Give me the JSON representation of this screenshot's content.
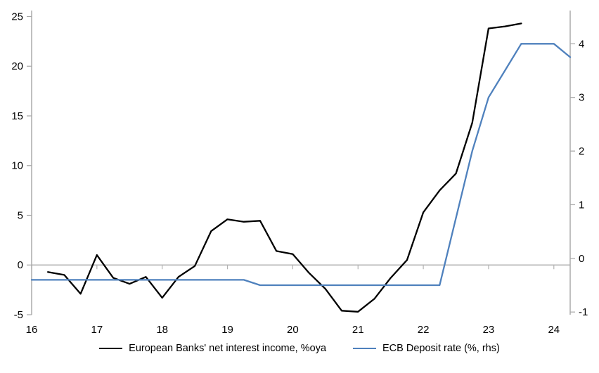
{
  "chart_data": {
    "type": "line",
    "title": "",
    "x_axis": {
      "min": 16,
      "max": 24.25,
      "tick_values": [
        16,
        17,
        18,
        19,
        20,
        21,
        22,
        23,
        24
      ],
      "tick_labels": [
        "16",
        "17",
        "18",
        "19",
        "20",
        "21",
        "22",
        "23",
        "24"
      ],
      "crosses_at_left_value": 0
    },
    "left_axis": {
      "min": -5,
      "max": 25.6,
      "tick_values": [
        25,
        20,
        15,
        10,
        5,
        0,
        -5
      ],
      "tick_labels": [
        "25",
        "20",
        "15",
        "10",
        "5",
        "0",
        "-5"
      ]
    },
    "right_axis": {
      "min": -1.05,
      "max": 4.62,
      "tick_values": [
        4,
        3,
        2,
        1,
        0,
        -1
      ],
      "tick_labels": [
        "4",
        "3",
        "2",
        "1",
        "0",
        "-1"
      ]
    },
    "grid": "zero-line-only",
    "legend_position": "bottom-center",
    "series": [
      {
        "name": "European Banks' net interest income, %oya",
        "axis": "left",
        "color": "#000000",
        "x": [
          16.25,
          16.5,
          16.75,
          17.0,
          17.25,
          17.5,
          17.75,
          18.0,
          18.25,
          18.5,
          18.75,
          19.0,
          19.25,
          19.5,
          19.75,
          20.0,
          20.25,
          20.5,
          20.75,
          21.0,
          21.25,
          21.5,
          21.75,
          22.0,
          22.25,
          22.5,
          22.75,
          23.0,
          23.25,
          23.5
        ],
        "values": [
          -0.7,
          -1.0,
          -2.9,
          1.0,
          -1.3,
          -1.9,
          -1.2,
          -3.3,
          -1.2,
          -0.1,
          3.4,
          4.6,
          4.35,
          4.45,
          1.4,
          1.1,
          -0.8,
          -2.4,
          -4.6,
          -4.7,
          -3.4,
          -1.3,
          0.5,
          5.3,
          7.5,
          9.2,
          14.3,
          23.8,
          24.0,
          24.3
        ]
      },
      {
        "name": "ECB Deposit rate (%, rhs)",
        "axis": "right",
        "color": "#4f81bd",
        "x": [
          16.0,
          16.25,
          16.5,
          16.75,
          17.0,
          17.25,
          17.5,
          17.75,
          18.0,
          18.25,
          18.5,
          18.75,
          19.0,
          19.25,
          19.5,
          19.75,
          20.0,
          20.25,
          20.5,
          20.75,
          21.0,
          21.25,
          21.5,
          21.75,
          22.0,
          22.25,
          22.5,
          22.75,
          23.0,
          23.25,
          23.5,
          23.75,
          24.0,
          24.25
        ],
        "values": [
          -0.4,
          -0.4,
          -0.4,
          -0.4,
          -0.4,
          -0.4,
          -0.4,
          -0.4,
          -0.4,
          -0.4,
          -0.4,
          -0.4,
          -0.4,
          -0.4,
          -0.5,
          -0.5,
          -0.5,
          -0.5,
          -0.5,
          -0.5,
          -0.5,
          -0.5,
          -0.5,
          -0.5,
          -0.5,
          -0.5,
          0.75,
          2.0,
          3.0,
          3.5,
          4.0,
          4.0,
          4.0,
          3.75
        ]
      }
    ],
    "colors": {
      "axis_line": "#a6a6a6",
      "zero_line": "#b3b3b3",
      "tick_text": "#000000"
    }
  }
}
